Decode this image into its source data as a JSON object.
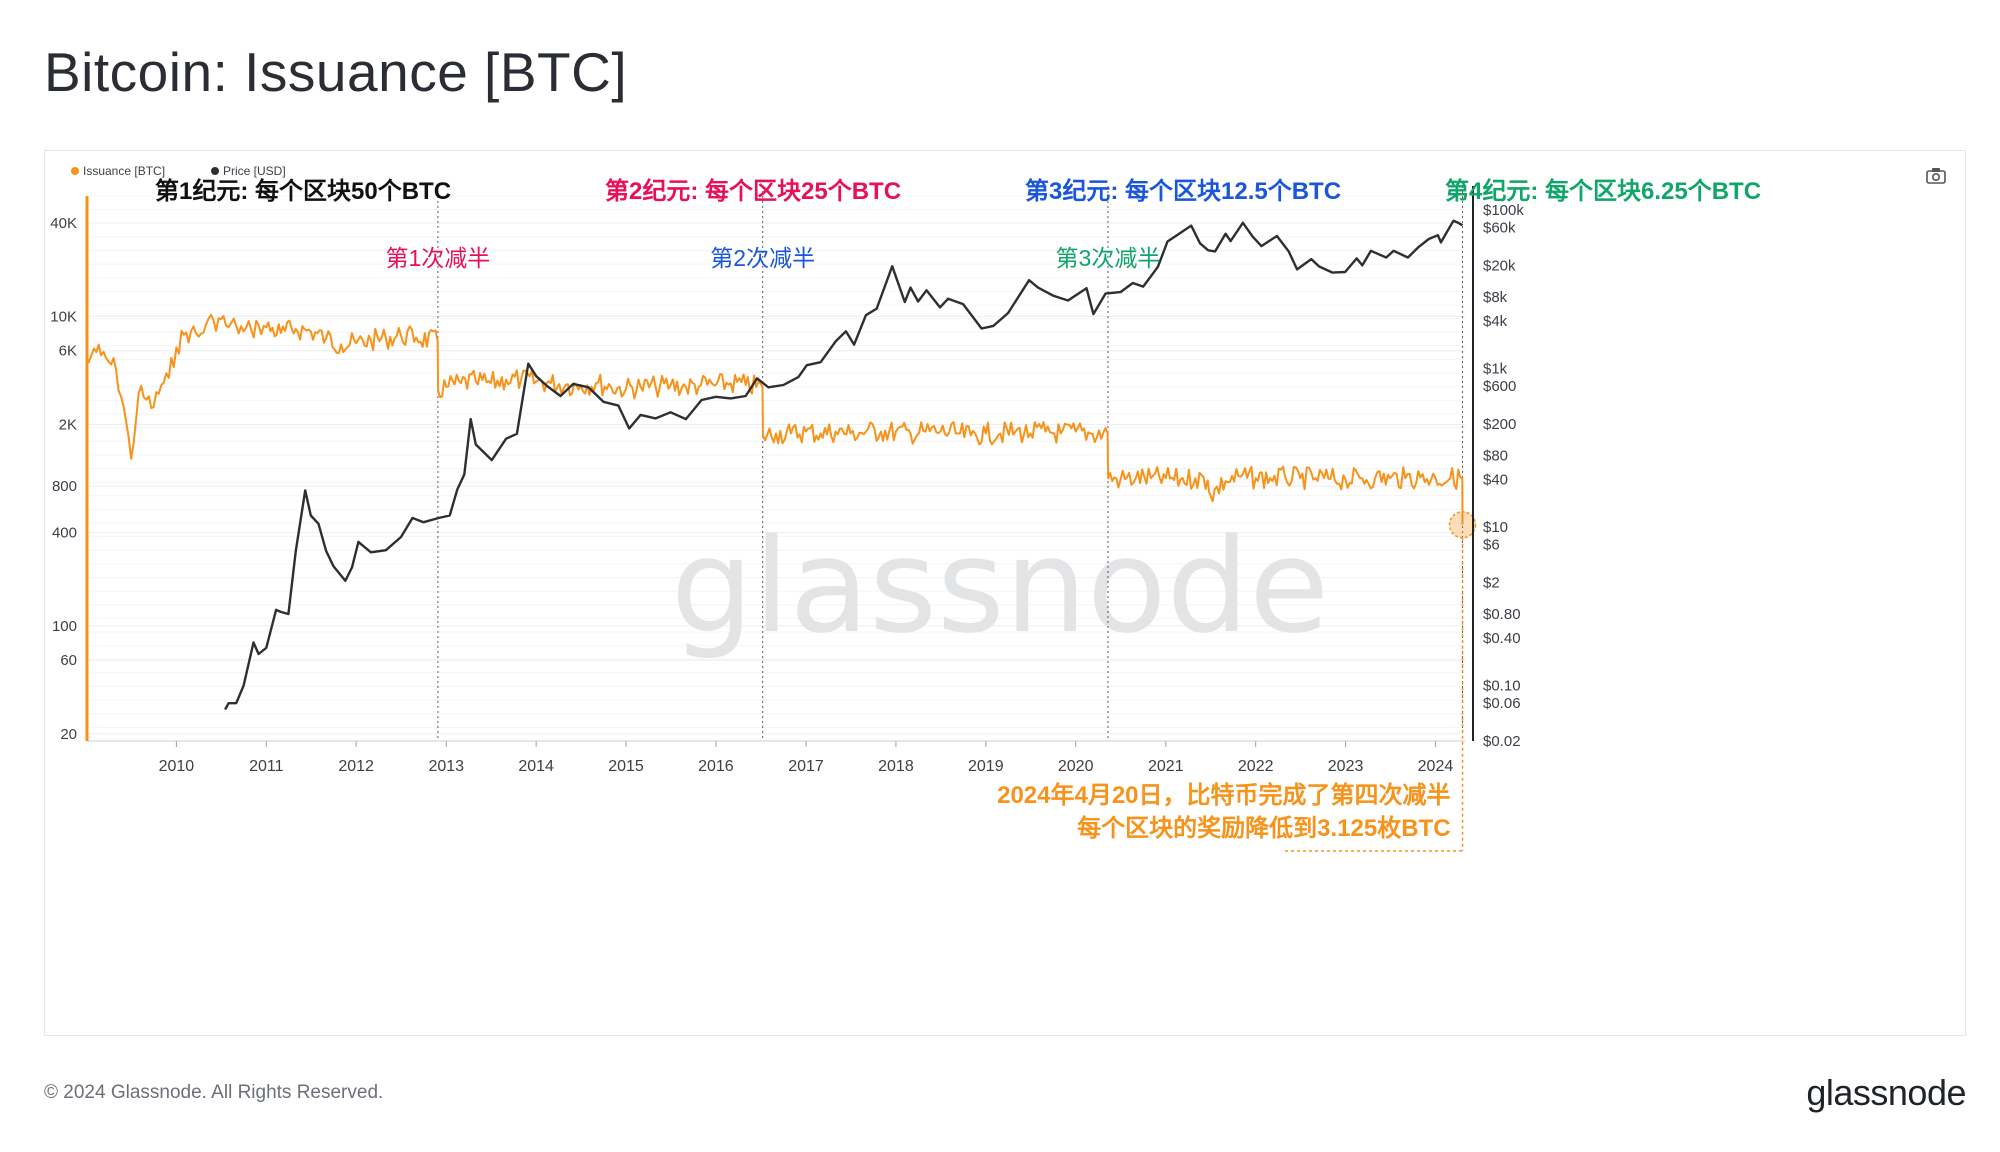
{
  "title": "Bitcoin: Issuance [BTC]",
  "footer": {
    "copyright": "© 2024 Glassnode. All Rights Reserved.",
    "logo": "glassnode"
  },
  "watermark": "glassnode",
  "icons": {
    "camera": "camera-icon"
  },
  "colors": {
    "issuance": "#f7931a",
    "price": "#2d2f33",
    "grid": "#eceef1",
    "epoch1": "#111111",
    "epoch2": "#e8105a",
    "epoch3": "#1a56db",
    "epoch4": "#10a56a",
    "annotation": "#f7931a"
  },
  "chart_data": {
    "type": "line",
    "title": "Bitcoin: Issuance [BTC]",
    "xlabel": "",
    "ylabel": "",
    "x_range": [
      "2009-01-03",
      "2024-04-30"
    ],
    "x_ticks": [
      "2010",
      "2011",
      "2012",
      "2013",
      "2014",
      "2015",
      "2016",
      "2017",
      "2018",
      "2019",
      "2020",
      "2021",
      "2022",
      "2023",
      "2024"
    ],
    "y_left": {
      "scale": "log",
      "range": [
        18,
        60000
      ],
      "ticks": [
        "40K",
        "10K",
        "6K",
        "2K",
        "800",
        "400",
        "100",
        "60",
        "20"
      ],
      "tick_values": [
        40000,
        10000,
        6000,
        2000,
        800,
        400,
        100,
        60,
        20
      ]
    },
    "y_right": {
      "scale": "log",
      "range": [
        0.02,
        150000
      ],
      "ticks": [
        "$100k",
        "$60k",
        "$20k",
        "$8k",
        "$4k",
        "$1k",
        "$600",
        "$200",
        "$80",
        "$40",
        "$10",
        "$6",
        "$2",
        "$0.80",
        "$0.40",
        "$0.10",
        "$0.06",
        "$0.02"
      ],
      "tick_values": [
        100000,
        60000,
        20000,
        8000,
        4000,
        1000,
        600,
        200,
        80,
        40,
        10,
        6,
        2,
        0.8,
        0.4,
        0.1,
        0.06,
        0.02
      ]
    },
    "legend": {
      "placement": "top-left",
      "entries": [
        "Issuance [BTC]",
        "Price [USD]"
      ]
    },
    "grid": true,
    "series": [
      {
        "name": "Issuance [BTC]",
        "axis": "left",
        "color": "#f7931a",
        "x": [
          "2009-01-09",
          "2009-02-01",
          "2009-03-01",
          "2009-04-01",
          "2009-05-01",
          "2009-06-01",
          "2009-07-01",
          "2009-08-01",
          "2009-09-01",
          "2009-10-01",
          "2009-11-01",
          "2009-12-01",
          "2010-01-01",
          "2010-02-01",
          "2010-03-01",
          "2010-04-01",
          "2010-05-01",
          "2010-06-01",
          "2010-07-01",
          "2010-08-01",
          "2010-09-01",
          "2010-10-01",
          "2010-11-01",
          "2010-12-01",
          "2011-01-01",
          "2011-03-01",
          "2011-05-01",
          "2011-07-01",
          "2011-09-01",
          "2011-11-01",
          "2012-01-01",
          "2012-03-01",
          "2012-05-01",
          "2012-07-01",
          "2012-09-01",
          "2012-11-27",
          "2012-11-29",
          "2013-01-01",
          "2013-03-01",
          "2013-05-01",
          "2013-07-01",
          "2013-09-01",
          "2013-11-01",
          "2014-01-01",
          "2014-03-01",
          "2014-05-01",
          "2014-07-01",
          "2014-09-01",
          "2014-11-01",
          "2015-01-01",
          "2015-03-01",
          "2015-05-01",
          "2015-07-01",
          "2015-09-01",
          "2015-11-01",
          "2016-01-01",
          "2016-03-01",
          "2016-05-01",
          "2016-07-08",
          "2016-07-10",
          "2016-09-01",
          "2016-11-01",
          "2017-01-01",
          "2017-03-01",
          "2017-05-01",
          "2017-07-01",
          "2017-09-01",
          "2017-11-01",
          "2018-01-01",
          "2018-03-01",
          "2018-05-01",
          "2018-07-01",
          "2018-09-01",
          "2018-11-01",
          "2019-01-01",
          "2019-03-01",
          "2019-05-01",
          "2019-07-01",
          "2019-09-01",
          "2019-11-01",
          "2020-01-01",
          "2020-03-01",
          "2020-05-10",
          "2020-05-12",
          "2020-07-01",
          "2020-09-01",
          "2020-11-01",
          "2021-01-01",
          "2021-03-01",
          "2021-05-01",
          "2021-06-20",
          "2021-07-01",
          "2021-09-01",
          "2021-11-01",
          "2022-01-01",
          "2022-03-01",
          "2022-05-01",
          "2022-07-01",
          "2022-09-01",
          "2022-11-01",
          "2023-01-01",
          "2023-03-01",
          "2023-05-01",
          "2023-07-01",
          "2023-09-01",
          "2023-11-01",
          "2024-01-01",
          "2024-03-01",
          "2024-04-19",
          "2024-04-20"
        ],
        "values": [
          5000,
          6200,
          5600,
          5100,
          4500,
          2600,
          1200,
          3200,
          2900,
          2600,
          3600,
          4000,
          6300,
          7600,
          8000,
          7400,
          8800,
          9400,
          9600,
          8500,
          8700,
          8000,
          8200,
          8800,
          8500,
          7800,
          8300,
          8000,
          7200,
          6600,
          6700,
          7000,
          7200,
          7500,
          7300,
          6900,
          3300,
          3500,
          3700,
          3800,
          3700,
          3900,
          3900,
          3800,
          3700,
          3600,
          3600,
          3700,
          3500,
          3400,
          3500,
          3500,
          3600,
          3500,
          3600,
          3600,
          3700,
          3600,
          3500,
          1700,
          1750,
          1750,
          1800,
          1750,
          1800,
          1750,
          1800,
          1800,
          1800,
          1750,
          1800,
          1800,
          1750,
          1700,
          1750,
          1750,
          1800,
          1750,
          1800,
          1750,
          1800,
          1750,
          1750,
          900,
          880,
          900,
          900,
          900,
          880,
          900,
          870,
          700,
          860,
          920,
          900,
          900,
          910,
          900,
          900,
          890,
          880,
          900,
          900,
          900,
          900,
          910,
          900,
          900,
          900,
          450
        ]
      },
      {
        "name": "Price [USD]",
        "axis": "right",
        "color": "#2d2f33",
        "x": [
          "2010-07-18",
          "2010-08-01",
          "2010-09-01",
          "2010-10-01",
          "2010-11-10",
          "2010-12-01",
          "2011-01-01",
          "2011-02-10",
          "2011-03-01",
          "2011-04-01",
          "2011-05-01",
          "2011-06-08",
          "2011-07-01",
          "2011-08-01",
          "2011-09-01",
          "2011-10-01",
          "2011-11-18",
          "2011-12-15",
          "2012-01-10",
          "2012-03-01",
          "2012-05-01",
          "2012-07-01",
          "2012-08-17",
          "2012-10-01",
          "2012-12-01",
          "2013-01-15",
          "2013-02-15",
          "2013-03-15",
          "2013-04-10",
          "2013-05-01",
          "2013-07-05",
          "2013-09-01",
          "2013-10-15",
          "2013-11-30",
          "2014-01-01",
          "2014-02-15",
          "2014-04-10",
          "2014-06-01",
          "2014-08-01",
          "2014-10-01",
          "2014-12-01",
          "2015-01-14",
          "2015-03-01",
          "2015-05-01",
          "2015-07-01",
          "2015-09-01",
          "2015-11-04",
          "2016-01-01",
          "2016-03-01",
          "2016-05-01",
          "2016-06-16",
          "2016-08-01",
          "2016-10-01",
          "2016-12-01",
          "2017-01-04",
          "2017-03-01",
          "2017-05-01",
          "2017-06-12",
          "2017-07-15",
          "2017-09-01",
          "2017-10-15",
          "2017-12-17",
          "2018-02-06",
          "2018-03-01",
          "2018-04-01",
          "2018-05-05",
          "2018-06-29",
          "2018-08-01",
          "2018-10-01",
          "2018-12-15",
          "2019-02-01",
          "2019-04-01",
          "2019-06-26",
          "2019-08-01",
          "2019-10-01",
          "2019-12-01",
          "2020-02-14",
          "2020-03-13",
          "2020-05-01",
          "2020-07-01",
          "2020-08-20",
          "2020-10-01",
          "2020-11-30",
          "2021-01-08",
          "2021-02-15",
          "2021-04-14",
          "2021-05-20",
          "2021-06-22",
          "2021-07-20",
          "2021-09-01",
          "2021-09-21",
          "2021-11-10",
          "2021-12-20",
          "2022-01-24",
          "2022-03-28",
          "2022-05-15",
          "2022-06-18",
          "2022-08-15",
          "2022-09-15",
          "2022-11-09",
          "2022-12-30",
          "2023-02-15",
          "2023-03-10",
          "2023-04-14",
          "2023-06-15",
          "2023-07-15",
          "2023-09-11",
          "2023-10-24",
          "2023-12-05",
          "2024-01-11",
          "2024-01-23",
          "2024-03-14",
          "2024-04-02",
          "2024-04-20"
        ],
        "values": [
          0.05,
          0.06,
          0.06,
          0.1,
          0.35,
          0.25,
          0.3,
          0.9,
          0.85,
          0.8,
          5,
          29,
          14,
          11,
          5,
          3.2,
          2.1,
          3.1,
          6.5,
          4.8,
          5.1,
          7.5,
          13,
          11.5,
          13,
          14,
          30,
          46,
          230,
          110,
          70,
          130,
          150,
          1150,
          800,
          600,
          450,
          640,
          580,
          380,
          340,
          175,
          260,
          235,
          280,
          230,
          400,
          440,
          420,
          450,
          750,
          580,
          620,
          780,
          1100,
          1200,
          2200,
          2950,
          2000,
          4700,
          5700,
          19500,
          6900,
          10500,
          7000,
          9700,
          5900,
          7600,
          6500,
          3200,
          3450,
          5000,
          13000,
          10500,
          8300,
          7200,
          10300,
          4850,
          8800,
          9200,
          12000,
          10800,
          19200,
          40000,
          48000,
          63500,
          38000,
          31000,
          30000,
          50000,
          40500,
          68800,
          46000,
          35000,
          47000,
          30000,
          17800,
          24000,
          19400,
          16200,
          16500,
          24500,
          20000,
          30500,
          25100,
          30500,
          25100,
          34000,
          43000,
          48000,
          39000,
          73000,
          69000,
          64000
        ]
      }
    ],
    "halvings": [
      {
        "date": "2012-11-28",
        "label": "第1次减半"
      },
      {
        "date": "2016-07-09",
        "label": "第2次减半"
      },
      {
        "date": "2020-05-11",
        "label": "第3次减半"
      },
      {
        "date": "2024-04-20",
        "label": ""
      }
    ],
    "epochs": [
      {
        "label": "第1纪元: 每个区块50个BTC",
        "color": "#111111",
        "start": "2009-01-03"
      },
      {
        "label": "第2纪元: 每个区块25个BTC",
        "color": "#e8105a",
        "start": "2012-11-28"
      },
      {
        "label": "第3纪元: 每个区块12.5个BTC",
        "color": "#1a56db",
        "start": "2016-07-09"
      },
      {
        "label": "第4纪元: 每个区块6.25个BTC",
        "color": "#10a56a",
        "start": "2020-05-11"
      }
    ],
    "annotation": {
      "line1": "2024年4月20日，比特币完成了第四次减半",
      "line2": "每个区块的奖励降低到3.125枚BTC",
      "date": "2024-04-20",
      "value": 450
    }
  }
}
